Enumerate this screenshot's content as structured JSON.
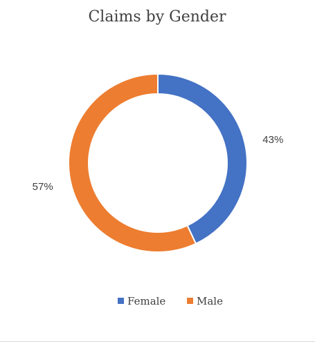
{
  "chart_data": {
    "type": "pie",
    "variant": "doughnut",
    "title": "Claims by Gender",
    "categories": [
      "Female",
      "Male"
    ],
    "values": [
      43,
      57
    ],
    "data_labels": [
      "43%",
      "57%"
    ],
    "colors": [
      "#4472C4",
      "#ED7D31"
    ],
    "legend_position": "bottom",
    "start_angle": "top, clockwise"
  }
}
